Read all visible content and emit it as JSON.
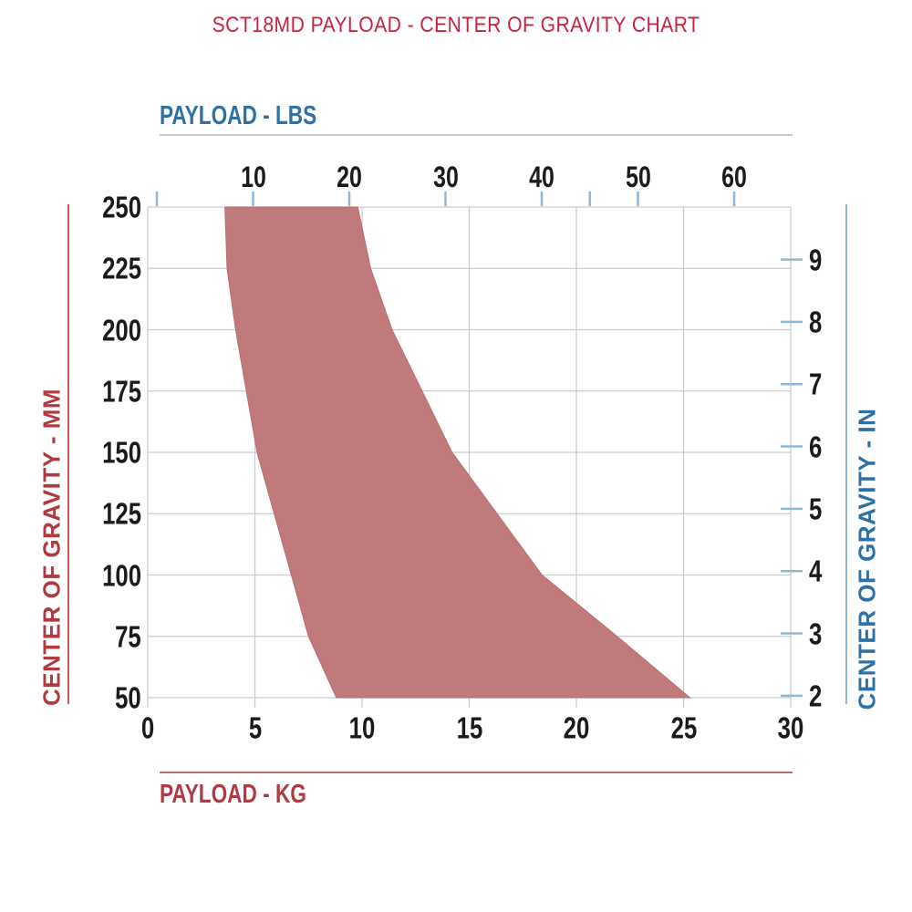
{
  "colors": {
    "title_red": "#c8223f",
    "axis_label_red": "#b13a42",
    "axis_line_red": "#c4565e",
    "axis_label_blue": "#2e71a5",
    "axis_line_blue": "#8fb3d2",
    "tick_blue": "#8fb7d6",
    "grid_gray": "#c9ccd0",
    "tick_number_black": "#1b1b1b",
    "region_fill": "#c07a7c",
    "region_edge": "#b56f73"
  },
  "chart_data": {
    "type": "area",
    "title": "SCT18MD PAYLOAD - CENTER OF GRAVITY CHART",
    "grid": true,
    "legend": "none",
    "axes": {
      "top": {
        "label": "PAYLOAD - LBS",
        "ticks": [
          10,
          20,
          30,
          40,
          50,
          60
        ],
        "unlabeled_ticks": [
          0,
          45
        ]
      },
      "bottom": {
        "label": "PAYLOAD - KG",
        "ticks": [
          0,
          5,
          10,
          15,
          20,
          25,
          30
        ],
        "range": [
          0,
          30
        ]
      },
      "left": {
        "label": "CENTER OF GRAVITY - MM",
        "ticks": [
          250,
          225,
          200,
          175,
          150,
          125,
          100,
          75,
          50
        ],
        "range": [
          50,
          250
        ]
      },
      "right": {
        "label": "CENTER OF GRAVITY - IN",
        "ticks": [
          9,
          8,
          7,
          6,
          5,
          4,
          3,
          2
        ]
      }
    },
    "envelope": {
      "description": "Shaded allowable payload vs center-of-gravity region",
      "cg_mm": [
        250,
        225,
        200,
        175,
        150,
        125,
        100,
        75,
        50
      ],
      "min_payload_kg": [
        3.6,
        3.7,
        4.1,
        4.6,
        5.1,
        5.9,
        6.7,
        7.5,
        8.8
      ],
      "max_payload_kg": [
        9.8,
        10.4,
        11.4,
        12.8,
        14.2,
        16.3,
        18.4,
        21.9,
        25.3
      ]
    }
  }
}
